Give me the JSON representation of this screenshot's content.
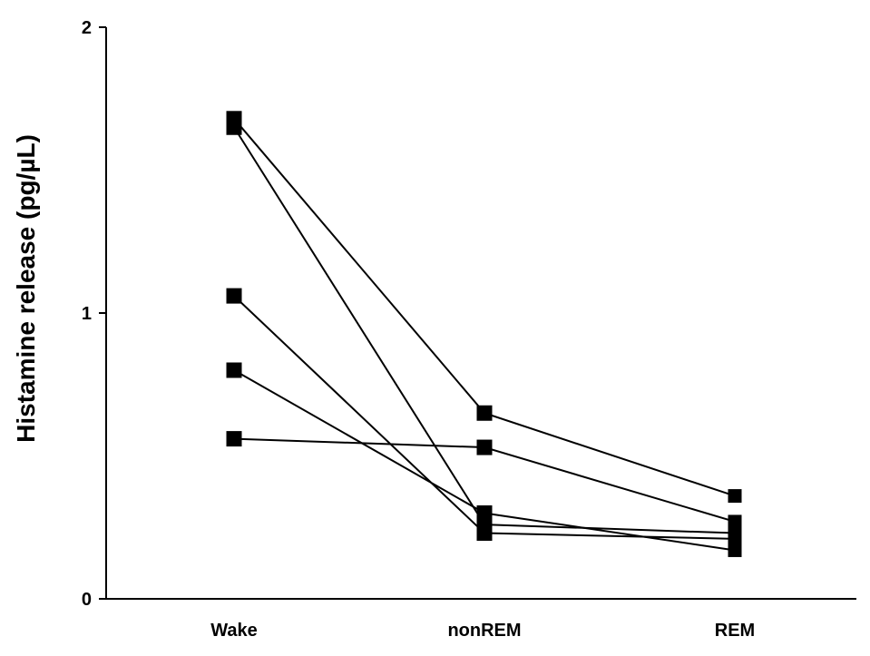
{
  "chart_data": {
    "type": "line",
    "categories": [
      "Wake",
      "nonREM",
      "REM"
    ],
    "series": [
      {
        "values": [
          1.68,
          0.65,
          0.36
        ]
      },
      {
        "values": [
          1.65,
          0.26,
          0.23
        ]
      },
      {
        "values": [
          1.06,
          0.23,
          0.21
        ]
      },
      {
        "values": [
          0.8,
          0.3,
          0.17
        ]
      },
      {
        "values": [
          0.56,
          0.53,
          0.27
        ]
      }
    ],
    "title": "",
    "xlabel": "",
    "ylabel": "Histamine release (pg/µL)",
    "ylim": [
      0,
      2
    ],
    "yticks": [
      "0",
      "1",
      "2"
    ],
    "grid": false,
    "marker": "square",
    "color": "#000000"
  }
}
